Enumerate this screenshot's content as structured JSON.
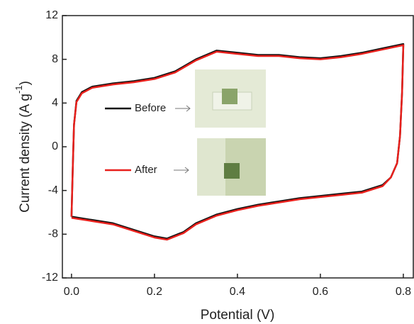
{
  "chart_data": {
    "type": "line",
    "xlabel": "Potential (V)",
    "ylabel": {
      "main": "Current density (A g",
      "sup": "-1",
      "end": ")"
    },
    "xlim": [
      -0.022,
      0.824
    ],
    "ylim": [
      -12,
      12
    ],
    "xticks": [
      {
        "value": 0,
        "label": "0.0"
      },
      0.2,
      0.4,
      0.6,
      0.8
    ],
    "yticks": [
      -12,
      -8,
      -4,
      0,
      4,
      8,
      12
    ],
    "series": [
      {
        "name": "Before",
        "color": "#111111",
        "x": [
          0,
          0.003,
          0.006,
          0.012,
          0.025,
          0.05,
          0.1,
          0.15,
          0.2,
          0.25,
          0.3,
          0.35,
          0.4,
          0.45,
          0.5,
          0.55,
          0.6,
          0.65,
          0.7,
          0.75,
          0.8,
          0.797,
          0.792,
          0.785,
          0.77,
          0.75,
          0.7,
          0.65,
          0.6,
          0.55,
          0.5,
          0.45,
          0.4,
          0.35,
          0.3,
          0.27,
          0.23,
          0.2,
          0.15,
          0.1,
          0.05,
          0
        ],
        "values": [
          -6.4,
          -2,
          2,
          4.2,
          5.0,
          5.5,
          5.8,
          6.0,
          6.3,
          6.9,
          8.0,
          8.8,
          8.6,
          8.4,
          8.4,
          8.2,
          8.1,
          8.3,
          8.6,
          9.0,
          9.4,
          5,
          1,
          -1.5,
          -2.8,
          -3.5,
          -4.1,
          -4.3,
          -4.5,
          -4.7,
          -5.0,
          -5.3,
          -5.7,
          -6.2,
          -7.0,
          -7.8,
          -8.4,
          -8.2,
          -7.6,
          -7.0,
          -6.7,
          -6.4
        ]
      },
      {
        "name": "After",
        "color": "#e8201c",
        "x": [
          0,
          0.003,
          0.006,
          0.012,
          0.025,
          0.05,
          0.1,
          0.15,
          0.2,
          0.25,
          0.3,
          0.35,
          0.4,
          0.45,
          0.5,
          0.55,
          0.6,
          0.65,
          0.7,
          0.75,
          0.8,
          0.797,
          0.792,
          0.785,
          0.77,
          0.75,
          0.7,
          0.65,
          0.6,
          0.55,
          0.5,
          0.45,
          0.4,
          0.35,
          0.3,
          0.27,
          0.23,
          0.2,
          0.15,
          0.1,
          0.05,
          0
        ],
        "values": [
          -6.4,
          -2,
          2,
          4.1,
          4.9,
          5.4,
          5.7,
          5.9,
          6.2,
          6.8,
          7.9,
          8.7,
          8.5,
          8.3,
          8.3,
          8.1,
          8.0,
          8.2,
          8.5,
          8.9,
          9.3,
          5,
          1,
          -1.5,
          -2.8,
          -3.6,
          -4.2,
          -4.4,
          -4.6,
          -4.8,
          -5.1,
          -5.4,
          -5.8,
          -6.3,
          -7.1,
          -7.9,
          -8.5,
          -8.3,
          -7.7,
          -7.1,
          -6.8,
          -6.5
        ]
      }
    ]
  }
}
